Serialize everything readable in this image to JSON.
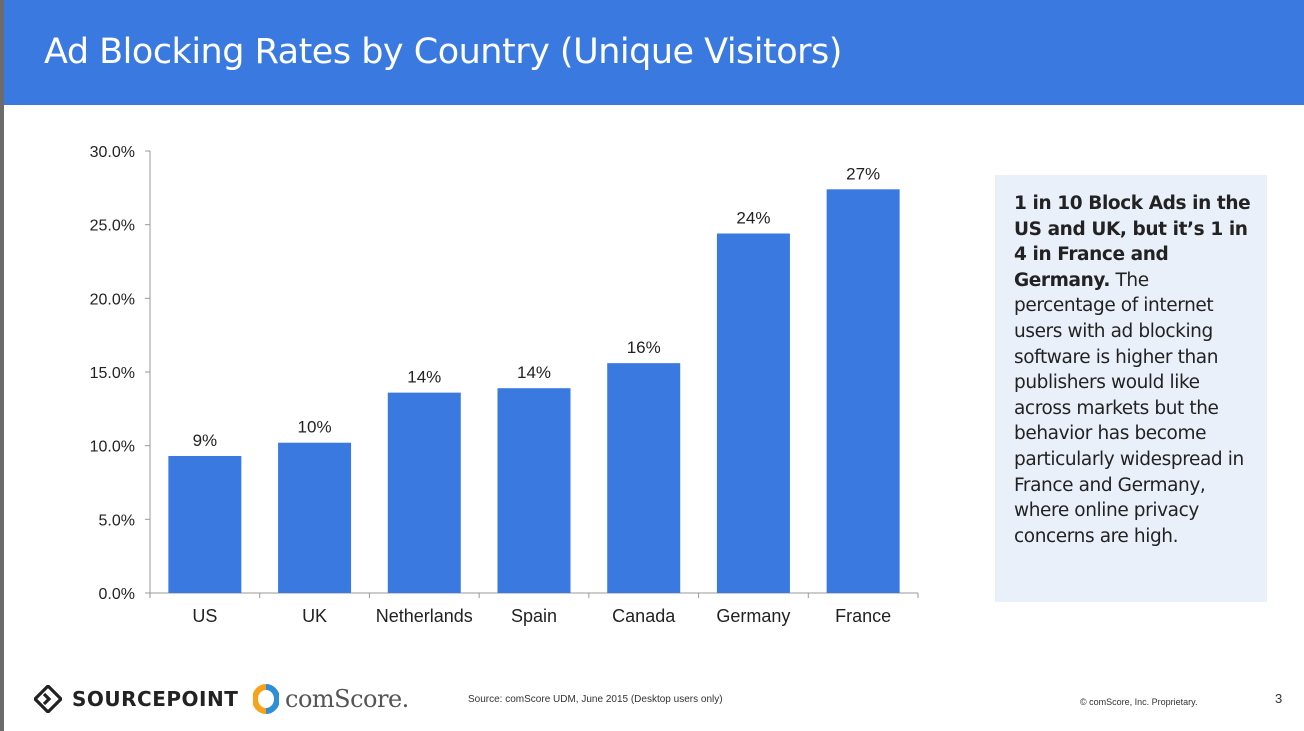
{
  "slide": {
    "title": "Ad Blocking Rates by Country (Unique Visitors)"
  },
  "colors": {
    "header": "#3a7ae0",
    "bar": "#3a7ae0",
    "callout_bg": "#eaf0fa"
  },
  "chart_data": {
    "type": "bar",
    "title": "",
    "xlabel": "",
    "ylabel": "",
    "categories": [
      "US",
      "UK",
      "Netherlands",
      "Spain",
      "Canada",
      "Germany",
      "France"
    ],
    "values": [
      9.3,
      10.2,
      13.6,
      13.9,
      15.6,
      24.4,
      27.4
    ],
    "data_labels": [
      "9%",
      "10%",
      "14%",
      "14%",
      "16%",
      "24%",
      "27%"
    ],
    "ylim": [
      0,
      30
    ],
    "yticks": [
      0,
      5,
      10,
      15,
      20,
      25,
      30
    ],
    "ytick_labels": [
      "0.0%",
      "5.0%",
      "10.0%",
      "15.0%",
      "20.0%",
      "25.0%",
      "30.0%"
    ],
    "grid": false,
    "legend": "none"
  },
  "callout": {
    "bold_text": "1 in 10 Block Ads in the US and UK, but it’s 1 in 4 in France and Germany.",
    "body_text": "The percentage of internet users with ad blocking software is higher than publishers would like across markets but the behavior has become particularly widespread in France and Germany, where online privacy concerns are high."
  },
  "footer": {
    "sourcepoint_logo_text": "SOURCEPOINT",
    "comscore_logo_text": "comScore.",
    "source": "Source: comScore UDM, June 2015 (Desktop users only)",
    "copyright": "© comScore, Inc. Proprietary.",
    "page_number": "3",
    "sourcepoint_icon": "diamond-chevron-icon",
    "comscore_icon": "ring-icon"
  }
}
